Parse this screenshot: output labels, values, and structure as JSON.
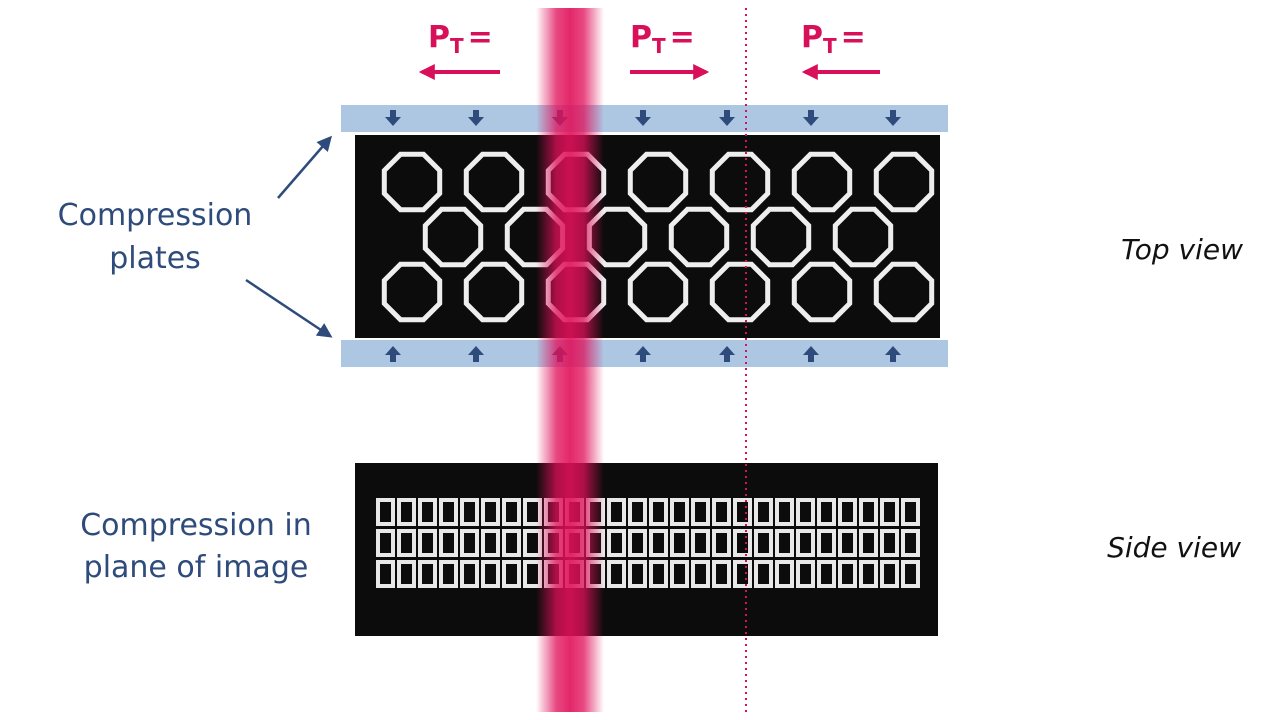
{
  "force_labels": [
    {
      "symbol": "P",
      "subscript": "T",
      "sign": "="
    },
    {
      "symbol": "P",
      "subscript": "T",
      "sign": "="
    },
    {
      "symbol": "P",
      "subscript": "T",
      "sign": "="
    }
  ],
  "left_labels": {
    "plates": [
      "Compression",
      "plates"
    ],
    "in_plane": [
      "Compression in",
      "plane of image"
    ]
  },
  "view_labels": {
    "top": "Top view",
    "side": "Side view"
  }
}
